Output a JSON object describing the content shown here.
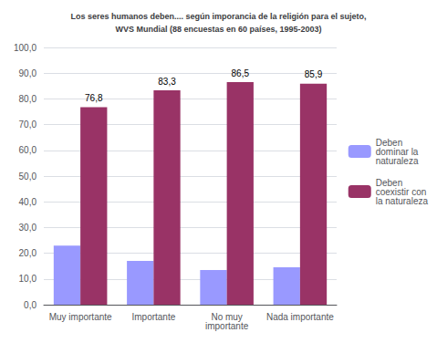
{
  "chart_data": {
    "type": "bar",
    "title": "Los seres humanos deben.... según imporancia de la religión para el sujeto,\nWVS Mundial (88 encuestas en 60 países, 1995-2003)",
    "categories": [
      "Muy importante",
      "Importante",
      "No muy\nimportante",
      "Nada importante"
    ],
    "series": [
      {
        "name": "Deben\ndominar la\nnaturaleza",
        "color": "#9999FF",
        "values": [
          23.0,
          17.0,
          13.5,
          14.5
        ]
      },
      {
        "name": "Deben\ncoexistir con\nla naturaleza",
        "color": "#993366",
        "values": [
          76.8,
          83.3,
          86.5,
          85.9
        ],
        "value_labels": [
          "76,8",
          "83,3",
          "86,5",
          "85,9"
        ]
      }
    ],
    "ylim": [
      0,
      100
    ],
    "yticks": [
      {
        "value": 0,
        "label": "0,0"
      },
      {
        "value": 10,
        "label": "10,0"
      },
      {
        "value": 20,
        "label": "20,0"
      },
      {
        "value": 30,
        "label": "30,0"
      },
      {
        "value": 40,
        "label": "40,0"
      },
      {
        "value": 50,
        "label": "50,0"
      },
      {
        "value": 60,
        "label": "60,0"
      },
      {
        "value": 70,
        "label": "70,0"
      },
      {
        "value": 80,
        "label": "80,0"
      },
      {
        "value": 90,
        "label": "90,0"
      },
      {
        "value": 100,
        "label": "100,0"
      }
    ],
    "grid": true,
    "legend": "right"
  }
}
